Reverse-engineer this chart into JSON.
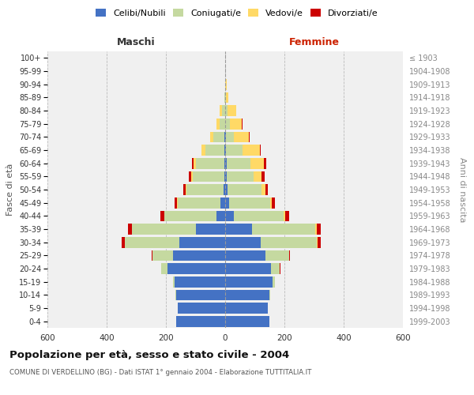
{
  "age_groups": [
    "0-4",
    "5-9",
    "10-14",
    "15-19",
    "20-24",
    "25-29",
    "30-34",
    "35-39",
    "40-44",
    "45-49",
    "50-54",
    "55-59",
    "60-64",
    "65-69",
    "70-74",
    "75-79",
    "80-84",
    "85-89",
    "90-94",
    "95-99",
    "100+"
  ],
  "birth_years": [
    "1999-2003",
    "1994-1998",
    "1989-1993",
    "1984-1988",
    "1979-1983",
    "1974-1978",
    "1969-1973",
    "1964-1968",
    "1959-1963",
    "1954-1958",
    "1949-1953",
    "1944-1948",
    "1939-1943",
    "1934-1938",
    "1929-1933",
    "1924-1928",
    "1919-1923",
    "1914-1918",
    "1909-1913",
    "1904-1908",
    "≤ 1903"
  ],
  "male": {
    "celibi": [
      165,
      160,
      165,
      170,
      195,
      175,
      155,
      100,
      30,
      15,
      6,
      4,
      3,
      2,
      2,
      0,
      0,
      0,
      0,
      0,
      0
    ],
    "coniugati": [
      0,
      0,
      2,
      5,
      20,
      70,
      185,
      215,
      175,
      145,
      125,
      105,
      95,
      65,
      38,
      20,
      10,
      3,
      1,
      0,
      0
    ],
    "vedovi": [
      0,
      0,
      0,
      0,
      0,
      0,
      0,
      0,
      1,
      2,
      3,
      5,
      8,
      12,
      10,
      10,
      8,
      1,
      0,
      0,
      0
    ],
    "divorziati": [
      0,
      0,
      0,
      0,
      2,
      3,
      10,
      12,
      12,
      10,
      8,
      8,
      5,
      0,
      2,
      0,
      0,
      0,
      0,
      0,
      0
    ]
  },
  "female": {
    "nubili": [
      150,
      145,
      150,
      160,
      155,
      135,
      120,
      90,
      28,
      12,
      8,
      5,
      5,
      3,
      2,
      0,
      0,
      0,
      0,
      0,
      0
    ],
    "coniugate": [
      0,
      0,
      3,
      8,
      30,
      80,
      190,
      215,
      170,
      140,
      115,
      90,
      80,
      55,
      28,
      15,
      8,
      2,
      1,
      0,
      0
    ],
    "vedove": [
      0,
      0,
      0,
      0,
      0,
      0,
      2,
      3,
      4,
      5,
      12,
      28,
      45,
      58,
      50,
      42,
      30,
      8,
      3,
      1,
      0
    ],
    "divorziate": [
      0,
      0,
      0,
      0,
      2,
      4,
      10,
      14,
      14,
      12,
      10,
      10,
      8,
      4,
      2,
      2,
      0,
      0,
      0,
      0,
      0
    ]
  },
  "colors": {
    "celibi": "#4472C4",
    "coniugati": "#c5d9a0",
    "vedovi": "#FFD966",
    "divorziati": "#CC0000"
  },
  "title": "Popolazione per età, sesso e stato civile - 2004",
  "subtitle": "COMUNE DI VERDELLINO (BG) - Dati ISTAT 1° gennaio 2004 - Elaborazione TUTTITALIA.IT",
  "xlabel_left": "Maschi",
  "xlabel_right": "Femmine",
  "ylabel_left": "Fasce di età",
  "ylabel_right": "Anni di nascita",
  "legend_labels": [
    "Celibi/Nubili",
    "Coniugati/e",
    "Vedovi/e",
    "Divorziati/e"
  ],
  "xlim": 600,
  "background_color": "#ffffff",
  "plot_bg": "#f0f0f0"
}
